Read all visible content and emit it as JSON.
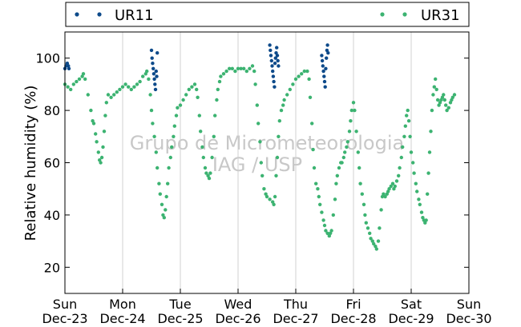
{
  "chart_data": {
    "type": "scatter",
    "ylabel": "Relative humidity (%)",
    "ylim": [
      10,
      110
    ],
    "yticks": [
      20,
      40,
      60,
      80,
      100
    ],
    "xlim": [
      0,
      7
    ],
    "x_unit": "days from Sun Dec-23",
    "xticks": [
      {
        "day": "Sun",
        "date": "Dec-23"
      },
      {
        "day": "Mon",
        "date": "Dec-24"
      },
      {
        "day": "Tue",
        "date": "Dec-25"
      },
      {
        "day": "Wed",
        "date": "Dec-26"
      },
      {
        "day": "Thu",
        "date": "Dec-27"
      },
      {
        "day": "Fri",
        "date": "Dec-28"
      },
      {
        "day": "Sat",
        "date": "Dec-29"
      },
      {
        "day": "Sun",
        "date": "Dec-30"
      }
    ],
    "grid": "vertical",
    "legend_position": "top",
    "watermark": [
      "Grupo de Micrometeorologia",
      "IAG / USP"
    ],
    "series": [
      {
        "name": "UR11",
        "color": "#0d4a8a",
        "points": [
          [
            0.0,
            96
          ],
          [
            0.02,
            97
          ],
          [
            0.04,
            98
          ],
          [
            0.06,
            97
          ],
          [
            0.07,
            96
          ],
          [
            1.5,
            103
          ],
          [
            1.51,
            100
          ],
          [
            1.52,
            98
          ],
          [
            1.53,
            96
          ],
          [
            1.54,
            94
          ],
          [
            1.55,
            92
          ],
          [
            1.56,
            90
          ],
          [
            1.57,
            88
          ],
          [
            1.58,
            95
          ],
          [
            1.59,
            93
          ],
          [
            1.6,
            102
          ],
          [
            3.55,
            105
          ],
          [
            3.56,
            103
          ],
          [
            3.57,
            101
          ],
          [
            3.58,
            99
          ],
          [
            3.59,
            97
          ],
          [
            3.6,
            95
          ],
          [
            3.61,
            93
          ],
          [
            3.62,
            91
          ],
          [
            3.63,
            89
          ],
          [
            3.64,
            98
          ],
          [
            3.65,
            100
          ],
          [
            3.66,
            102
          ],
          [
            3.67,
            104
          ],
          [
            3.68,
            101
          ],
          [
            3.69,
            99
          ],
          [
            3.7,
            97
          ],
          [
            4.45,
            101
          ],
          [
            4.46,
            99
          ],
          [
            4.47,
            97
          ],
          [
            4.48,
            95
          ],
          [
            4.49,
            93
          ],
          [
            4.5,
            91
          ],
          [
            4.51,
            89
          ],
          [
            4.52,
            96
          ],
          [
            4.53,
            100
          ],
          [
            4.54,
            103
          ],
          [
            4.55,
            105
          ],
          [
            4.56,
            102
          ]
        ]
      },
      {
        "name": "UR31",
        "color": "#3cb371",
        "points": [
          [
            0.0,
            90
          ],
          [
            0.05,
            89
          ],
          [
            0.1,
            88
          ],
          [
            0.15,
            90
          ],
          [
            0.2,
            91
          ],
          [
            0.25,
            92
          ],
          [
            0.3,
            93
          ],
          [
            0.32,
            94
          ],
          [
            0.35,
            92
          ],
          [
            0.4,
            86
          ],
          [
            0.45,
            80
          ],
          [
            0.48,
            76
          ],
          [
            0.5,
            75
          ],
          [
            0.53,
            71
          ],
          [
            0.55,
            68
          ],
          [
            0.58,
            64
          ],
          [
            0.6,
            61
          ],
          [
            0.62,
            60
          ],
          [
            0.64,
            62
          ],
          [
            0.66,
            66
          ],
          [
            0.68,
            72
          ],
          [
            0.7,
            78
          ],
          [
            0.72,
            83
          ],
          [
            0.75,
            86
          ],
          [
            0.8,
            85
          ],
          [
            0.85,
            86
          ],
          [
            0.9,
            87
          ],
          [
            0.95,
            88
          ],
          [
            1.0,
            89
          ],
          [
            1.05,
            90
          ],
          [
            1.1,
            89
          ],
          [
            1.15,
            88
          ],
          [
            1.2,
            89
          ],
          [
            1.25,
            90
          ],
          [
            1.3,
            91
          ],
          [
            1.35,
            93
          ],
          [
            1.4,
            94
          ],
          [
            1.42,
            95
          ],
          [
            1.45,
            92
          ],
          [
            1.48,
            86
          ],
          [
            1.5,
            80
          ],
          [
            1.52,
            75
          ],
          [
            1.55,
            70
          ],
          [
            1.58,
            64
          ],
          [
            1.6,
            58
          ],
          [
            1.63,
            52
          ],
          [
            1.65,
            48
          ],
          [
            1.68,
            44
          ],
          [
            1.7,
            40
          ],
          [
            1.72,
            39
          ],
          [
            1.74,
            42
          ],
          [
            1.76,
            47
          ],
          [
            1.78,
            52
          ],
          [
            1.8,
            58
          ],
          [
            1.83,
            62
          ],
          [
            1.85,
            66
          ],
          [
            1.88,
            70
          ],
          [
            1.9,
            74
          ],
          [
            1.93,
            78
          ],
          [
            1.95,
            81
          ],
          [
            2.0,
            82
          ],
          [
            2.05,
            84
          ],
          [
            2.1,
            86
          ],
          [
            2.15,
            88
          ],
          [
            2.2,
            89
          ],
          [
            2.25,
            90
          ],
          [
            2.28,
            88
          ],
          [
            2.3,
            85
          ],
          [
            2.33,
            78
          ],
          [
            2.35,
            72
          ],
          [
            2.38,
            66
          ],
          [
            2.4,
            62
          ],
          [
            2.43,
            58
          ],
          [
            2.45,
            56
          ],
          [
            2.48,
            55
          ],
          [
            2.5,
            54
          ],
          [
            2.52,
            56
          ],
          [
            2.55,
            62
          ],
          [
            2.58,
            70
          ],
          [
            2.6,
            78
          ],
          [
            2.63,
            84
          ],
          [
            2.65,
            88
          ],
          [
            2.68,
            91
          ],
          [
            2.7,
            93
          ],
          [
            2.75,
            94
          ],
          [
            2.8,
            95
          ],
          [
            2.85,
            96
          ],
          [
            2.9,
            96
          ],
          [
            2.95,
            95
          ],
          [
            3.0,
            96
          ],
          [
            3.05,
            96
          ],
          [
            3.1,
            96
          ],
          [
            3.15,
            95
          ],
          [
            3.2,
            96
          ],
          [
            3.25,
            97
          ],
          [
            3.28,
            95
          ],
          [
            3.3,
            90
          ],
          [
            3.33,
            82
          ],
          [
            3.35,
            75
          ],
          [
            3.38,
            68
          ],
          [
            3.4,
            60
          ],
          [
            3.42,
            55
          ],
          [
            3.45,
            50
          ],
          [
            3.48,
            48
          ],
          [
            3.5,
            47
          ],
          [
            3.55,
            46
          ],
          [
            3.6,
            45
          ],
          [
            3.62,
            44
          ],
          [
            3.64,
            47
          ],
          [
            3.66,
            55
          ],
          [
            3.68,
            62
          ],
          [
            3.7,
            70
          ],
          [
            3.72,
            76
          ],
          [
            3.75,
            80
          ],
          [
            3.78,
            82
          ],
          [
            3.8,
            84
          ],
          [
            3.85,
            86
          ],
          [
            3.9,
            88
          ],
          [
            3.95,
            90
          ],
          [
            4.0,
            92
          ],
          [
            4.05,
            93
          ],
          [
            4.1,
            94
          ],
          [
            4.15,
            95
          ],
          [
            4.2,
            95
          ],
          [
            4.23,
            92
          ],
          [
            4.25,
            85
          ],
          [
            4.28,
            75
          ],
          [
            4.3,
            65
          ],
          [
            4.32,
            58
          ],
          [
            4.35,
            52
          ],
          [
            4.38,
            50
          ],
          [
            4.4,
            47
          ],
          [
            4.42,
            44
          ],
          [
            4.45,
            41
          ],
          [
            4.48,
            38
          ],
          [
            4.5,
            36
          ],
          [
            4.52,
            34
          ],
          [
            4.55,
            33
          ],
          [
            4.58,
            32
          ],
          [
            4.6,
            33
          ],
          [
            4.62,
            34
          ],
          [
            4.65,
            40
          ],
          [
            4.68,
            46
          ],
          [
            4.7,
            52
          ],
          [
            4.72,
            55
          ],
          [
            4.75,
            58
          ],
          [
            4.78,
            60
          ],
          [
            4.8,
            60
          ],
          [
            4.83,
            62
          ],
          [
            4.85,
            64
          ],
          [
            4.88,
            66
          ],
          [
            4.9,
            68
          ],
          [
            4.93,
            72
          ],
          [
            4.95,
            76
          ],
          [
            4.97,
            80
          ],
          [
            5.0,
            83
          ],
          [
            5.02,
            80
          ],
          [
            5.05,
            72
          ],
          [
            5.08,
            64
          ],
          [
            5.1,
            58
          ],
          [
            5.12,
            52
          ],
          [
            5.15,
            48
          ],
          [
            5.18,
            44
          ],
          [
            5.2,
            40
          ],
          [
            5.22,
            37
          ],
          [
            5.25,
            35
          ],
          [
            5.28,
            33
          ],
          [
            5.3,
            31
          ],
          [
            5.33,
            30
          ],
          [
            5.35,
            29
          ],
          [
            5.38,
            28
          ],
          [
            5.4,
            27
          ],
          [
            5.43,
            30
          ],
          [
            5.45,
            35
          ],
          [
            5.48,
            42
          ],
          [
            5.5,
            47
          ],
          [
            5.52,
            48
          ],
          [
            5.55,
            47
          ],
          [
            5.58,
            48
          ],
          [
            5.6,
            49
          ],
          [
            5.62,
            50
          ],
          [
            5.65,
            51
          ],
          [
            5.68,
            52
          ],
          [
            5.7,
            50
          ],
          [
            5.72,
            51
          ],
          [
            5.75,
            53
          ],
          [
            5.78,
            55
          ],
          [
            5.8,
            58
          ],
          [
            5.83,
            62
          ],
          [
            5.85,
            66
          ],
          [
            5.88,
            70
          ],
          [
            5.9,
            74
          ],
          [
            5.92,
            78
          ],
          [
            5.94,
            80
          ],
          [
            5.96,
            76
          ],
          [
            5.98,
            70
          ],
          [
            6.0,
            64
          ],
          [
            6.03,
            60
          ],
          [
            6.05,
            56
          ],
          [
            6.08,
            52
          ],
          [
            6.1,
            49
          ],
          [
            6.13,
            46
          ],
          [
            6.15,
            44
          ],
          [
            6.18,
            41
          ],
          [
            6.2,
            39
          ],
          [
            6.22,
            38
          ],
          [
            6.24,
            37
          ],
          [
            6.26,
            38
          ],
          [
            6.28,
            48
          ],
          [
            6.3,
            56
          ],
          [
            6.32,
            64
          ],
          [
            6.34,
            72
          ],
          [
            6.36,
            80
          ],
          [
            6.38,
            86
          ],
          [
            6.4,
            89
          ],
          [
            6.42,
            92
          ],
          [
            6.44,
            88
          ],
          [
            6.46,
            84
          ],
          [
            6.48,
            82
          ],
          [
            6.5,
            83
          ],
          [
            6.52,
            84
          ],
          [
            6.54,
            85
          ],
          [
            6.56,
            86
          ],
          [
            6.58,
            84
          ],
          [
            6.6,
            82
          ],
          [
            6.62,
            80
          ],
          [
            6.65,
            81
          ],
          [
            6.68,
            83
          ],
          [
            6.7,
            84
          ],
          [
            6.72,
            85
          ],
          [
            6.75,
            86
          ]
        ]
      }
    ]
  }
}
